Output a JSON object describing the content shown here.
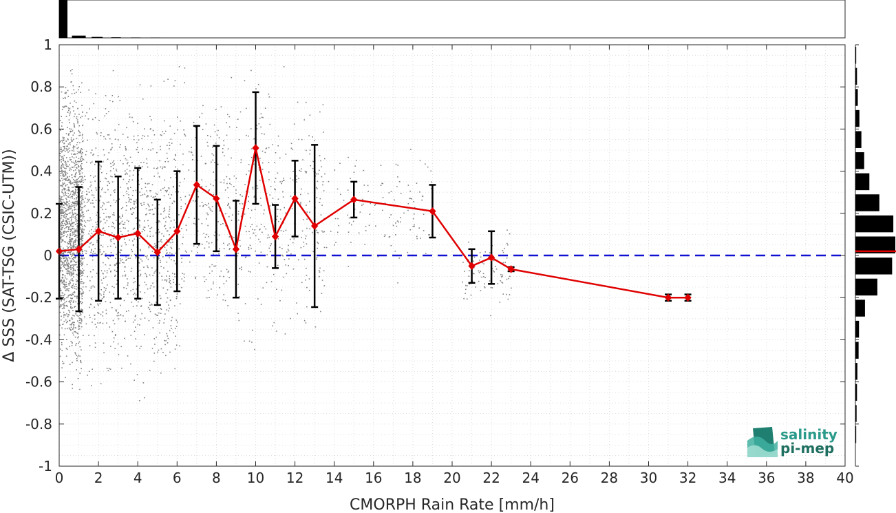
{
  "chart_data": {
    "type": "scatter",
    "title": "",
    "xlabel": "CMORPH Rain Rate [mm/h]",
    "ylabel": "Δ SSS (SAT-TSG (CSIC-UTM))",
    "xlim": [
      0,
      40
    ],
    "ylim": [
      -1,
      1
    ],
    "x_ticks": [
      "0",
      "2",
      "4",
      "6",
      "8",
      "10",
      "12",
      "14",
      "16",
      "18",
      "20",
      "22",
      "24",
      "26",
      "28",
      "30",
      "32",
      "34",
      "36",
      "38",
      "40"
    ],
    "y_ticks": [
      "-1",
      "-0.8",
      "-0.6",
      "-0.4",
      "-0.2",
      "0",
      "0.2",
      "0.4",
      "0.6",
      "0.8",
      "1"
    ],
    "grid": true,
    "reference_line": {
      "y": 0,
      "style": "dashed",
      "color": "#1010d0"
    },
    "series": [
      {
        "kind": "mean_with_std",
        "color": "#e00000",
        "x": [
          0,
          1,
          2,
          3,
          4,
          5,
          6,
          7,
          8,
          9,
          10,
          11,
          12,
          13,
          15,
          19,
          21,
          22,
          23,
          31,
          32
        ],
        "mean": [
          0.02,
          0.03,
          0.115,
          0.085,
          0.105,
          0.015,
          0.115,
          0.335,
          0.27,
          0.03,
          0.51,
          0.09,
          0.27,
          0.14,
          0.265,
          0.21,
          -0.05,
          -0.01,
          -0.065,
          -0.2,
          -0.2
        ],
        "std": [
          0.225,
          0.295,
          0.33,
          0.29,
          0.31,
          0.25,
          0.285,
          0.28,
          0.25,
          0.23,
          0.265,
          0.15,
          0.18,
          0.385,
          0.085,
          0.125,
          0.08,
          0.125,
          0.01,
          0.015,
          0.015
        ]
      }
    ],
    "scatter_points": {
      "color": "#808080",
      "description_ranges": [
        {
          "x": [
            0,
            1.2
          ],
          "y": [
            -0.75,
            1
          ]
        },
        {
          "x": [
            1,
            6
          ],
          "y": [
            -0.8,
            1
          ]
        },
        {
          "x": [
            6,
            13.5
          ],
          "y": [
            -0.55,
            1
          ]
        },
        {
          "x": [
            13,
            19
          ],
          "y": [
            -0.15,
            0.6
          ]
        },
        {
          "x": [
            20.5,
            23
          ],
          "y": [
            -0.3,
            0.15
          ]
        }
      ]
    },
    "top_histogram": {
      "bins_x": [
        0,
        1,
        2,
        3,
        4,
        5
      ],
      "relative_counts": [
        1.0,
        0.06,
        0.025,
        0.015,
        0.01,
        0.008
      ]
    },
    "right_histogram": {
      "bins_y": [
        -0.85,
        -0.75,
        -0.65,
        -0.55,
        -0.45,
        -0.35,
        -0.25,
        -0.15,
        -0.05,
        0.05,
        0.15,
        0.25,
        0.35,
        0.45,
        0.55,
        0.65,
        0.75,
        0.85,
        0.95
      ],
      "relative_counts": [
        0.02,
        0.03,
        0.04,
        0.05,
        0.08,
        0.09,
        0.24,
        0.55,
        0.92,
        1.0,
        0.95,
        0.6,
        0.35,
        0.22,
        0.15,
        0.1,
        0.06,
        0.04,
        0.02
      ],
      "mean_line_y": 0.02,
      "mean_line_color": "#e00000"
    }
  },
  "logo": {
    "line1": "salinity",
    "line2": "pi-mep",
    "text_color": "#2a9a8a"
  }
}
